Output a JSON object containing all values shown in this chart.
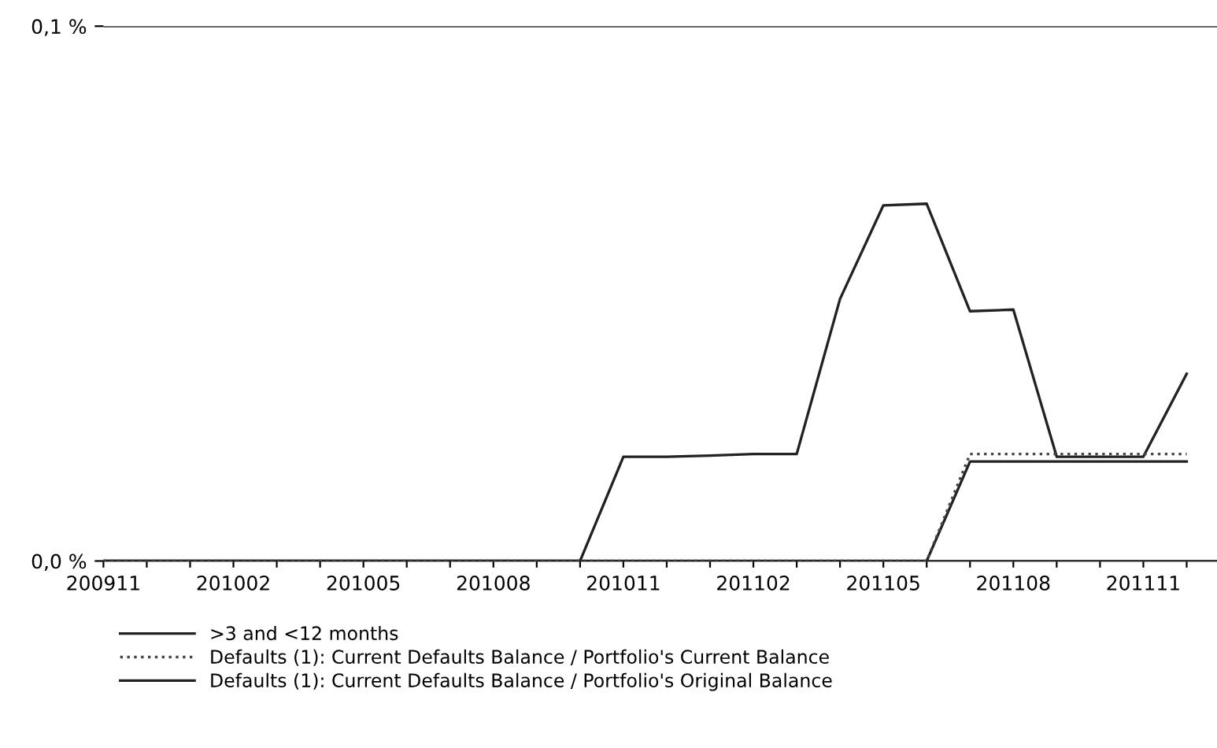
{
  "chart_data": {
    "type": "line",
    "categories": [
      "200911",
      null,
      null,
      "201002",
      null,
      null,
      "201005",
      null,
      null,
      "201008",
      null,
      null,
      "201011",
      null,
      null,
      "201102",
      null,
      null,
      "201105",
      null,
      null,
      "201108",
      null,
      null,
      "201111",
      null
    ],
    "series": [
      {
        "name": ">3 and <12 months",
        "color": "#222222",
        "line_style": "solid",
        "values": [
          0,
          0,
          0,
          0,
          0,
          0,
          0,
          0,
          0,
          0,
          0,
          0,
          0.0195,
          0.0195,
          0.0197,
          0.02,
          0.02,
          0.049,
          0.0665,
          0.0668,
          0.0467,
          0.047,
          0.0195,
          0.0195,
          0.0195,
          0.035
        ]
      },
      {
        "name": "Defaults (1): Current Defaults Balance / Portfolio's Current Balance",
        "color": "#444444",
        "line_style": "dotted",
        "values": [
          0,
          0,
          0,
          0,
          0,
          0,
          0,
          0,
          0,
          0,
          0,
          0,
          0,
          0,
          0,
          0,
          0,
          0,
          0,
          0,
          0.02,
          0.02,
          0.02,
          0.02,
          0.02,
          0.02
        ]
      },
      {
        "name": "Defaults (1): Current Defaults Balance / Portfolio's Original Balance",
        "color": "#222222",
        "line_style": "solid",
        "values": [
          0,
          0,
          0,
          0,
          0,
          0,
          0,
          0,
          0,
          0,
          0,
          0,
          0,
          0,
          0,
          0,
          0,
          0,
          0,
          0,
          0.0186,
          0.0186,
          0.0186,
          0.0186,
          0.0186,
          0.0186
        ]
      }
    ],
    "ylim": [
      0,
      0.1
    ],
    "yticks": [
      {
        "value": 0,
        "label": "0,0 %"
      },
      {
        "value": 0.1,
        "label": "0,1 %"
      }
    ],
    "grid": "y",
    "legend": "bottom",
    "marker": "none"
  }
}
